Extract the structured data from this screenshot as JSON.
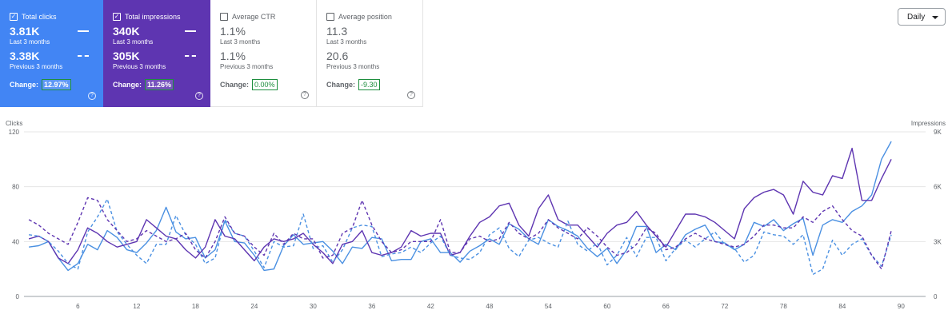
{
  "cards": [
    {
      "label": "Total clicks",
      "active": true,
      "check": "✓",
      "bg": "#4285f4",
      "value": "3.81K",
      "value_sub": "Last 3 months",
      "prev": "3.38K",
      "prev_sub": "Previous 3 months",
      "change_label": "Change:",
      "change": "12.97%",
      "help": "?"
    },
    {
      "label": "Total impressions",
      "active": true,
      "check": "✓",
      "bg": "#5e35b1",
      "value": "340K",
      "value_sub": "Last 3 months",
      "prev": "305K",
      "prev_sub": "Previous 3 months",
      "change_label": "Change:",
      "change": "11.26%",
      "help": "?"
    },
    {
      "label": "Average CTR",
      "active": false,
      "check": "",
      "bg": "#ffffff",
      "value": "1.1%",
      "value_sub": "Last 3 months",
      "prev": "1.1%",
      "prev_sub": "Previous 3 months",
      "change_label": "Change:",
      "change": "0.00%",
      "help": "?"
    },
    {
      "label": "Average position",
      "active": false,
      "check": "",
      "bg": "#ffffff",
      "value": "11.3",
      "value_sub": "Last 3 months",
      "prev": "20.6",
      "prev_sub": "Previous 3 months",
      "change_label": "Change:",
      "change": "-9.30",
      "help": "?"
    }
  ],
  "range_select": {
    "label": "Daily"
  },
  "chart_data": {
    "type": "line",
    "ylabel_left": "Clicks",
    "ylabel_right": "Impressions",
    "ylim_left": [
      0,
      120
    ],
    "yticks_left": [
      0,
      40,
      80,
      120
    ],
    "ylim_right": [
      0,
      9000
    ],
    "yticks_right": [
      "0",
      "3K",
      "6K",
      "9K"
    ],
    "xlim": [
      1,
      92
    ],
    "xticks": [
      6,
      12,
      18,
      24,
      30,
      36,
      42,
      48,
      54,
      60,
      66,
      72,
      78,
      84,
      90
    ],
    "grid": true,
    "colors": {
      "clicks": "#4a90e2",
      "impressions": "#5e35b1"
    },
    "series": [
      {
        "name": "Total clicks",
        "axis": "left",
        "style": "solid",
        "color": "#4a90e2",
        "values": [
          36,
          37,
          40,
          28,
          19,
          24,
          38,
          34,
          48,
          43,
          34,
          32,
          39,
          48,
          65,
          47,
          42,
          43,
          28,
          34,
          55,
          40,
          39,
          30,
          19,
          20,
          37,
          45,
          38,
          39,
          40,
          33,
          24,
          36,
          35,
          43,
          42,
          26,
          27,
          27,
          40,
          42,
          32,
          32,
          25,
          33,
          37,
          42,
          38,
          53,
          49,
          42,
          38,
          56,
          51,
          48,
          44,
          35,
          29,
          35,
          24,
          34,
          51,
          51,
          32,
          38,
          34,
          45,
          49,
          52,
          40,
          39,
          34,
          38,
          54,
          51,
          56,
          48,
          53,
          57,
          30,
          52,
          56,
          54,
          62,
          66,
          74,
          100,
          113
        ]
      },
      {
        "name": "Total impressions",
        "axis": "right",
        "style": "solid",
        "color": "#5e35b1",
        "values": [
          3150,
          3300,
          3000,
          2100,
          1800,
          2550,
          3750,
          3450,
          3000,
          2700,
          2850,
          3000,
          4200,
          3750,
          3300,
          3150,
          2550,
          2100,
          2700,
          4200,
          3300,
          3150,
          2550,
          1950,
          2700,
          3150,
          3000,
          3150,
          3450,
          2850,
          2400,
          1800,
          2850,
          3000,
          3600,
          2400,
          2250,
          2400,
          2700,
          3600,
          3300,
          3450,
          3450,
          2250,
          2400,
          3300,
          4050,
          4350,
          4950,
          5100,
          3900,
          3300,
          4800,
          5550,
          4200,
          3900,
          3900,
          3300,
          2700,
          3450,
          3900,
          4050,
          4650,
          3900,
          3300,
          2700,
          3600,
          4500,
          4500,
          4350,
          4050,
          3600,
          3150,
          4800,
          5400,
          5700,
          5850,
          5550,
          4500,
          6300,
          5700,
          5550,
          6600,
          6450,
          8100,
          5250,
          5250,
          6450,
          7500
        ]
      },
      {
        "name": "Total clicks (previous)",
        "axis": "left",
        "style": "dashed",
        "color": "#4a90e2",
        "values": [
          45,
          44,
          40,
          33,
          24,
          20,
          47,
          58,
          71,
          47,
          38,
          30,
          24,
          38,
          38,
          59,
          45,
          38,
          24,
          28,
          56,
          46,
          44,
          33,
          21,
          40,
          36,
          37,
          60,
          35,
          37,
          25,
          34,
          50,
          52,
          51,
          29,
          31,
          32,
          36,
          32,
          39,
          44,
          30,
          28,
          27,
          32,
          45,
          50,
          35,
          29,
          41,
          43,
          39,
          36,
          55,
          38,
          33,
          39,
          23,
          30,
          43,
          29,
          43,
          43,
          26,
          35,
          41,
          36,
          42,
          47,
          38,
          35,
          25,
          30,
          47,
          45,
          44,
          38,
          45,
          16,
          20,
          41,
          30,
          38,
          42,
          30,
          22,
          45
        ]
      },
      {
        "name": "Total impressions (previous)",
        "axis": "right",
        "style": "dashed",
        "color": "#5e35b1",
        "values": [
          4200,
          3900,
          3450,
          3150,
          2850,
          4050,
          5400,
          5250,
          4200,
          3600,
          3000,
          3150,
          3600,
          3300,
          3000,
          3150,
          3450,
          2550,
          2100,
          3000,
          4350,
          3450,
          3300,
          2700,
          2250,
          3450,
          2850,
          3450,
          3150,
          3150,
          2100,
          2250,
          3450,
          3750,
          5250,
          3900,
          3000,
          2400,
          2550,
          3000,
          3000,
          3000,
          4200,
          2400,
          2400,
          3150,
          3300,
          3000,
          3150,
          4050,
          3450,
          3150,
          3450,
          4200,
          3750,
          3450,
          3150,
          3750,
          3300,
          2700,
          2250,
          2400,
          2850,
          3750,
          3450,
          2550,
          2700,
          3150,
          3450,
          3150,
          3000,
          2850,
          2700,
          2850,
          3300,
          3900,
          3900,
          3750,
          3750,
          4350,
          4050,
          4650,
          4950,
          4200,
          3600,
          3300,
          2250,
          1500,
          3600
        ]
      }
    ]
  }
}
